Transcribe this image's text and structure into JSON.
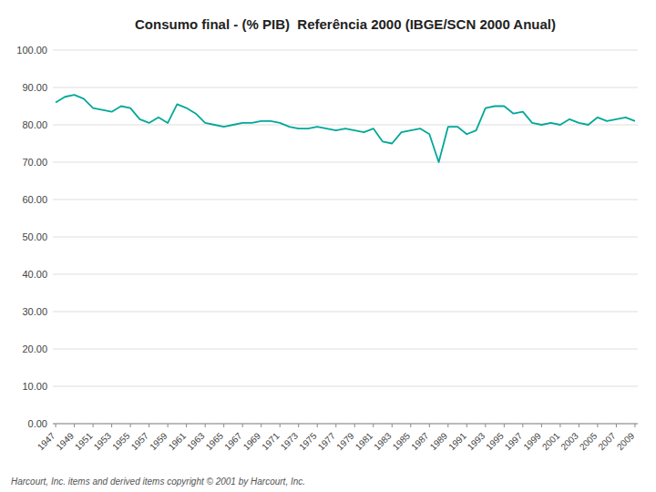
{
  "chart_data": {
    "type": "line",
    "title": "Consumo final - (% PIB)  Referência 2000 (IBGE/SCN 2000 Anual)",
    "footer": "Harcourt, Inc. items and derived items copyright © 2001 by Harcourt, Inc.",
    "x": [
      1947,
      1948,
      1949,
      1950,
      1951,
      1952,
      1953,
      1954,
      1955,
      1956,
      1957,
      1958,
      1959,
      1960,
      1961,
      1962,
      1963,
      1964,
      1965,
      1966,
      1967,
      1968,
      1969,
      1970,
      1971,
      1972,
      1973,
      1974,
      1975,
      1976,
      1977,
      1978,
      1979,
      1980,
      1981,
      1982,
      1983,
      1984,
      1985,
      1986,
      1987,
      1988,
      1989,
      1990,
      1991,
      1992,
      1993,
      1994,
      1995,
      1996,
      1997,
      1998,
      1999,
      2000,
      2001,
      2002,
      2003,
      2004,
      2005,
      2006,
      2007,
      2008,
      2009
    ],
    "values": [
      86.0,
      87.5,
      88.0,
      87.0,
      84.5,
      84.0,
      83.5,
      85.0,
      84.5,
      81.5,
      80.5,
      82.0,
      80.5,
      85.5,
      84.5,
      83.0,
      80.5,
      80.0,
      79.5,
      80.0,
      80.5,
      80.5,
      81.0,
      81.0,
      80.5,
      79.5,
      79.0,
      79.0,
      79.5,
      79.0,
      78.5,
      79.0,
      78.5,
      78.0,
      79.0,
      75.5,
      75.0,
      78.0,
      78.5,
      79.0,
      77.5,
      70.0,
      79.5,
      79.5,
      77.5,
      78.5,
      84.5,
      85.0,
      85.0,
      83.0,
      83.5,
      80.5,
      80.0,
      80.5,
      80.0,
      81.5,
      80.5,
      80.0,
      82.0,
      81.0,
      81.5,
      82.0,
      81.0
    ],
    "color": "#00A898",
    "xlim": [
      1946.7,
      2009.3
    ],
    "xticks": [
      1947,
      1949,
      1951,
      1953,
      1955,
      1957,
      1959,
      1961,
      1963,
      1965,
      1967,
      1969,
      1971,
      1973,
      1975,
      1977,
      1979,
      1981,
      1983,
      1985,
      1987,
      1989,
      1991,
      1993,
      1995,
      1997,
      1999,
      2001,
      2003,
      2005,
      2007,
      2009
    ],
    "ylim": [
      0,
      100
    ],
    "yticks": [
      {
        "value": 0,
        "label": "0.00"
      },
      {
        "value": 10,
        "label": "10.00"
      },
      {
        "value": 20,
        "label": "20.00"
      },
      {
        "value": 30,
        "label": "30.00"
      },
      {
        "value": 40,
        "label": "40.00"
      },
      {
        "value": 50,
        "label": "50.00"
      },
      {
        "value": 60,
        "label": "60.00"
      },
      {
        "value": 70,
        "label": "70.00"
      },
      {
        "value": 80,
        "label": "80.00"
      },
      {
        "value": 90,
        "label": "90.00"
      },
      {
        "value": 100,
        "label": "100.00"
      }
    ],
    "grid": true
  }
}
